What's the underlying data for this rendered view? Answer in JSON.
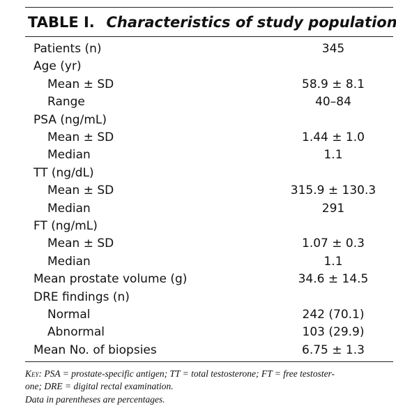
{
  "header": {
    "label": "TABLE I.",
    "title": "Characteristics of study population"
  },
  "table": {
    "groups": [
      {
        "label": "Patients (n)",
        "value": "345"
      },
      {
        "label": "Age (yr)",
        "rows": [
          {
            "label": "Mean ± SD",
            "value": "58.9 ± 8.1"
          },
          {
            "label": "Range",
            "value": "40–84"
          }
        ]
      },
      {
        "label": "PSA (ng/mL)",
        "rows": [
          {
            "label": "Mean ± SD",
            "value": "1.44 ± 1.0"
          },
          {
            "label": "Median",
            "value": "1.1"
          }
        ]
      },
      {
        "label": "TT (ng/dL)",
        "rows": [
          {
            "label": "Mean ± SD",
            "value": "315.9 ± 130.3"
          },
          {
            "label": "Median",
            "value": "291"
          }
        ]
      },
      {
        "label": "FT (ng/mL)",
        "rows": [
          {
            "label": "Mean ± SD",
            "value": "1.07 ± 0.3"
          },
          {
            "label": "Median",
            "value": "1.1"
          }
        ]
      },
      {
        "label": "Mean prostate volume (g)",
        "value": "34.6 ± 14.5"
      },
      {
        "label": "DRE findings (n)",
        "rows": [
          {
            "label": "Normal",
            "value": "242 (70.1)"
          },
          {
            "label": "Abnormal",
            "value": "103 (29.9)"
          }
        ]
      },
      {
        "label": "Mean No. of biopsies",
        "value": "6.75 ± 1.3"
      }
    ]
  },
  "footnote": {
    "key": "Key:",
    "lines": [
      "PSA = prostate-specific antigen; TT = total testosterone; FT = free testoster-",
      "one; DRE = digital rectal examination.",
      "Data in parentheses are percentages."
    ]
  }
}
